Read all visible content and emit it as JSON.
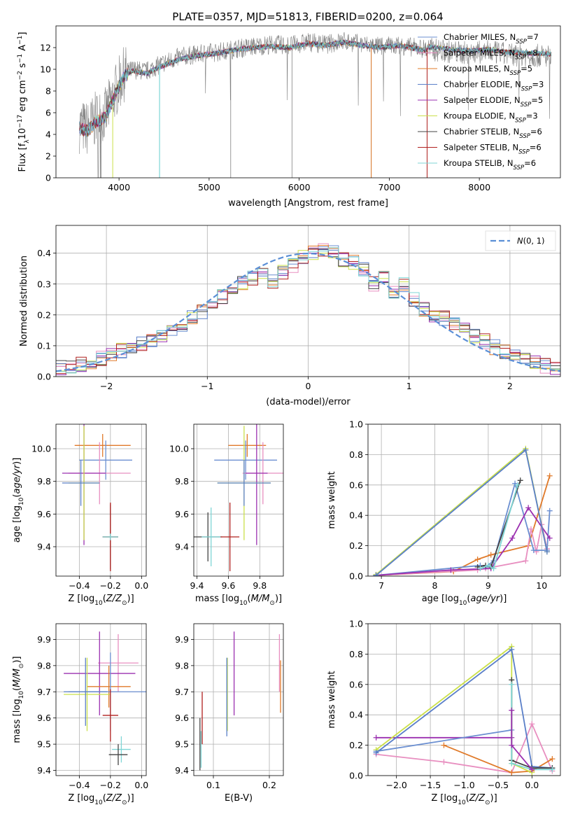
{
  "title": "PLATE=0357, MJD=51813, FIBERID=0200, z=0.064",
  "colors": {
    "chabrier_miles": "#6b8fd1",
    "salpeter_miles": "#e88fc0",
    "kroupa_miles": "#e07a2a",
    "chabrier_elodie": "#5a7fc8",
    "salpeter_elodie": "#9b30b0",
    "kroupa_elodie": "#cbe04a",
    "chabrier_stelib": "#444444",
    "salpeter_stelib": "#b0201e",
    "kroupa_stelib": "#7fd6d6",
    "data": "#808080",
    "gaussian": "#5b8fd6",
    "grid": "#b0b0b0"
  },
  "chart_data": [
    {
      "id": "spectrum",
      "type": "line",
      "title": "PLATE=0357, MJD=51813, FIBERID=0200, z=0.064",
      "xlabel": "wavelength [Angstrom, rest frame]",
      "ylabel": "Flux [f_λ 10^-17 erg cm^-2 s^-1 A^-1]",
      "xlim": [
        3300,
        8900
      ],
      "ylim": [
        0,
        14
      ],
      "xticks": [
        4000,
        5000,
        6000,
        7000,
        8000
      ],
      "yticks": [
        0,
        2,
        4,
        6,
        8,
        10,
        12
      ],
      "grid": false,
      "legend_position": "right",
      "legend": [
        {
          "base": "Chabrier MILES, N",
          "sub": "SSP",
          "tail": "=7",
          "key": "chabrier_miles"
        },
        {
          "base": "Salpeter MILES, N",
          "sub": "SSP",
          "tail": "=8",
          "key": "salpeter_miles"
        },
        {
          "base": "Kroupa MILES, N",
          "sub": "SSP",
          "tail": "=5",
          "key": "kroupa_miles"
        },
        {
          "base": "Chabrier ELODIE, N",
          "sub": "SSP",
          "tail": "=3",
          "key": "chabrier_elodie"
        },
        {
          "base": "Salpeter ELODIE, N",
          "sub": "SSP",
          "tail": "=5",
          "key": "salpeter_elodie"
        },
        {
          "base": "Kroupa ELODIE, N",
          "sub": "SSP",
          "tail": "=3",
          "key": "kroupa_elodie"
        },
        {
          "base": "Chabrier STELIB, N",
          "sub": "SSP",
          "tail": "=6",
          "key": "chabrier_stelib"
        },
        {
          "base": "Salpeter STELIB, N",
          "sub": "SSP",
          "tail": "=6",
          "key": "salpeter_stelib"
        },
        {
          "base": "Kroupa STELIB, N",
          "sub": "SSP",
          "tail": "=6",
          "key": "kroupa_stelib"
        }
      ],
      "data_continuum": {
        "x": [
          3560,
          3650,
          3750,
          3850,
          3950,
          4050,
          4150,
          4300,
          4500,
          4700,
          4900,
          5100,
          5300,
          5500,
          5700,
          5900,
          6100,
          6300,
          6500,
          6700,
          6900,
          7100,
          7300,
          7500,
          7700,
          7900,
          8100,
          8300,
          8500,
          8800
        ],
        "y": [
          4.8,
          4.5,
          5.5,
          5.8,
          7.8,
          9.5,
          10.0,
          9.8,
          10.6,
          11.2,
          11.4,
          11.6,
          11.9,
          12.1,
          12.3,
          12.2,
          12.5,
          12.3,
          12.6,
          12.3,
          12.1,
          12.2,
          12.0,
          11.8,
          11.6,
          11.5,
          11.6,
          11.4,
          11.3,
          11.2
        ]
      },
      "model_continuum": {
        "x": [
          3560,
          3650,
          3750,
          3850,
          3950,
          4050,
          4150,
          4300,
          4500,
          4700,
          4900,
          5100,
          5300,
          5500,
          5700,
          5900,
          6100,
          6300,
          6500,
          6700,
          6900,
          7100,
          7300,
          7420
        ],
        "y": [
          4.6,
          4.3,
          5.2,
          5.6,
          7.5,
          9.3,
          9.9,
          9.6,
          10.4,
          11.0,
          11.3,
          11.5,
          11.8,
          12.0,
          12.1,
          12.0,
          12.4,
          12.2,
          12.5,
          12.2,
          12.0,
          12.2,
          11.9,
          11.7
        ]
      }
    },
    {
      "id": "residuals",
      "type": "step",
      "xlabel": "(data-model)/error",
      "ylabel": "Normed distribution",
      "xlim": [
        -2.5,
        2.5
      ],
      "ylim": [
        0,
        0.49
      ],
      "xticks": [
        -2,
        -1,
        0,
        1,
        2
      ],
      "xtick_labels": [
        "−2",
        "−1",
        "0",
        "1",
        "2"
      ],
      "yticks": [
        0.0,
        0.1,
        0.2,
        0.3,
        0.4
      ],
      "ytick_labels": [
        "0.0",
        "0.1",
        "0.2",
        "0.3",
        "0.4"
      ],
      "grid": true,
      "legend_position": "top-right",
      "gaussian_label": "N(0,1)",
      "bin_edges": [
        -2.5,
        -2.4,
        -2.3,
        -2.2,
        -2.1,
        -2.0,
        -1.9,
        -1.8,
        -1.7,
        -1.6,
        -1.5,
        -1.4,
        -1.3,
        -1.2,
        -1.1,
        -1.0,
        -0.9,
        -0.8,
        -0.7,
        -0.6,
        -0.5,
        -0.4,
        -0.3,
        -0.2,
        -0.1,
        0.0,
        0.1,
        0.2,
        0.3,
        0.4,
        0.5,
        0.6,
        0.7,
        0.8,
        0.9,
        1.0,
        1.1,
        1.2,
        1.3,
        1.4,
        1.5,
        1.6,
        1.7,
        1.8,
        1.9,
        2.0,
        2.1,
        2.2,
        2.3,
        2.4,
        2.5
      ],
      "hist_base": [
        0.03,
        0.035,
        0.04,
        0.05,
        0.06,
        0.075,
        0.085,
        0.095,
        0.105,
        0.12,
        0.135,
        0.15,
        0.17,
        0.19,
        0.21,
        0.235,
        0.26,
        0.28,
        0.3,
        0.32,
        0.335,
        0.31,
        0.34,
        0.36,
        0.39,
        0.4,
        0.41,
        0.4,
        0.38,
        0.37,
        0.35,
        0.3,
        0.32,
        0.27,
        0.3,
        0.25,
        0.22,
        0.2,
        0.19,
        0.17,
        0.15,
        0.13,
        0.115,
        0.095,
        0.08,
        0.07,
        0.06,
        0.045,
        0.035,
        0.03
      ]
    },
    {
      "id": "z_vs_age",
      "type": "errorbar",
      "xlabel": "Z [log10(Z/Z⊙)]",
      "ylabel": "age [log10(age/yr)]",
      "xlim": [
        -0.55,
        0.03
      ],
      "ylim": [
        9.22,
        10.15
      ],
      "xticks": [
        -0.4,
        -0.2,
        0.0
      ],
      "xtick_labels": [
        "−0.4",
        "−0.2",
        "0.0"
      ],
      "yticks": [
        9.4,
        9.6,
        9.8,
        10.0
      ],
      "ytick_labels": [
        "9.4",
        "9.6",
        "9.8",
        "10.0"
      ],
      "grid": true,
      "points": [
        {
          "key": "kroupa_miles",
          "x": -0.25,
          "xerr": 0.18,
          "y": 10.02,
          "yerr": 0.07
        },
        {
          "key": "chabrier_miles",
          "x": -0.23,
          "xerr": 0.17,
          "y": 9.93,
          "yerr": 0.12
        },
        {
          "key": "salpeter_miles",
          "x": -0.27,
          "xerr": 0.2,
          "y": 9.85,
          "yerr": 0.19
        },
        {
          "key": "salpeter_elodie",
          "x": -0.37,
          "xerr": 0.14,
          "y": 9.85,
          "yerr": 0.44
        },
        {
          "key": "kroupa_elodie",
          "x": -0.37,
          "xerr": 0.1,
          "y": 9.79,
          "yerr": 0.35
        },
        {
          "key": "chabrier_elodie",
          "x": -0.39,
          "xerr": 0.12,
          "y": 9.79,
          "yerr": 0.14
        },
        {
          "key": "chabrier_stelib",
          "x": -0.2,
          "xerr": 0.05,
          "y": 9.46,
          "yerr": 0.2
        },
        {
          "key": "salpeter_stelib",
          "x": -0.2,
          "xerr": 0.05,
          "y": 9.46,
          "yerr": 0.21
        },
        {
          "key": "kroupa_stelib",
          "x": -0.2,
          "xerr": 0.05,
          "y": 9.46,
          "yerr": 0.02
        }
      ]
    },
    {
      "id": "mass_vs_age",
      "type": "errorbar",
      "xlabel": "mass [log10(M/M⊙)]",
      "ylabel": "",
      "xlim": [
        9.38,
        9.95
      ],
      "ylim": [
        9.22,
        10.15
      ],
      "xticks": [
        9.4,
        9.6,
        9.8
      ],
      "xtick_labels": [
        "9.4",
        "9.6",
        "9.8"
      ],
      "yticks": [
        9.4,
        9.6,
        9.8,
        10.0
      ],
      "ytick_labels": [
        "9.4",
        "9.6",
        "9.8",
        "10.0"
      ],
      "grid": true,
      "points": [
        {
          "key": "kroupa_miles",
          "x": 9.72,
          "xerr": 0.12,
          "y": 10.02,
          "yerr": 0.07
        },
        {
          "key": "chabrier_miles",
          "x": 9.71,
          "xerr": 0.2,
          "y": 9.93,
          "yerr": 0.12
        },
        {
          "key": "salpeter_miles",
          "x": 9.82,
          "xerr": 0.13,
          "y": 9.85,
          "yerr": 0.19
        },
        {
          "key": "salpeter_elodie",
          "x": 9.78,
          "xerr": 0.07,
          "y": 9.85,
          "yerr": 0.44
        },
        {
          "key": "kroupa_elodie",
          "x": 9.7,
          "xerr": 0.17,
          "y": 9.79,
          "yerr": 0.35
        },
        {
          "key": "chabrier_elodie",
          "x": 9.7,
          "xerr": 0.17,
          "y": 9.79,
          "yerr": 0.14
        },
        {
          "key": "chabrier_stelib",
          "x": 9.47,
          "xerr": 0.09,
          "y": 9.46,
          "yerr": 0.15
        },
        {
          "key": "salpeter_stelib",
          "x": 9.61,
          "xerr": 0.06,
          "y": 9.46,
          "yerr": 0.21
        },
        {
          "key": "kroupa_stelib",
          "x": 9.49,
          "xerr": 0.06,
          "y": 9.46,
          "yerr": 0.18
        }
      ]
    },
    {
      "id": "age_weights",
      "type": "line",
      "xlabel": "age [log10(age/yr)]",
      "ylabel": "mass weight",
      "xlim": [
        6.75,
        10.35
      ],
      "ylim": [
        0,
        1
      ],
      "xticks": [
        7,
        8,
        9,
        10
      ],
      "xtick_labels": [
        "7",
        "8",
        "9",
        "10"
      ],
      "yticks": [
        0.0,
        0.2,
        0.4,
        0.6,
        0.8,
        1.0
      ],
      "ytick_labels": [
        "0.0",
        "0.2",
        "0.4",
        "0.6",
        "0.8",
        "1.0"
      ],
      "grid": true,
      "series": [
        {
          "key": "kroupa_miles",
          "x": [
            6.9,
            8.35,
            8.8,
            9.05,
            9.75,
            10.15
          ],
          "y": [
            0.005,
            0.03,
            0.11,
            0.14,
            0.2,
            0.66
          ]
        },
        {
          "key": "salpeter_miles",
          "x": [
            6.9,
            8.8,
            8.95,
            9.7,
            9.8,
            9.9,
            10.0,
            10.1
          ],
          "y": [
            0.005,
            0.04,
            0.05,
            0.1,
            0.31,
            0.16,
            0.34,
            0.18
          ]
        },
        {
          "key": "chabrier_miles",
          "x": [
            6.9,
            8.85,
            8.95,
            9.1,
            9.5,
            9.85,
            10.1,
            10.15
          ],
          "y": [
            0.005,
            0.07,
            0.06,
            0.1,
            0.61,
            0.17,
            0.17,
            0.43
          ]
        },
        {
          "key": "salpeter_elodie",
          "x": [
            6.9,
            8.3,
            9.05,
            9.45,
            9.75,
            10.15
          ],
          "y": [
            0.005,
            0.04,
            0.05,
            0.25,
            0.45,
            0.25
          ]
        },
        {
          "key": "kroupa_elodie",
          "x": [
            6.9,
            9.7,
            10.1
          ],
          "y": [
            0.01,
            0.84,
            0.16
          ]
        },
        {
          "key": "chabrier_elodie",
          "x": [
            6.9,
            9.7,
            10.1
          ],
          "y": [
            0.005,
            0.83,
            0.16
          ]
        },
        {
          "key": "chabrier_stelib",
          "x": [
            8.8,
            8.95,
            9.05,
            9.6
          ],
          "y": [
            0.06,
            0.07,
            0.06,
            0.63
          ]
        },
        {
          "key": "kroupa_stelib",
          "x": [
            8.85,
            9.0,
            9.1,
            9.55
          ],
          "y": [
            0.05,
            0.07,
            0.05,
            0.6
          ]
        }
      ]
    },
    {
      "id": "mass_vs_z",
      "type": "errorbar",
      "xlabel": "Z [log10(Z/Z⊙)]",
      "ylabel": "mass [log10(M/M⊙)]",
      "xlim": [
        -0.55,
        0.03
      ],
      "ylim": [
        9.38,
        9.96
      ],
      "xticks": [
        -0.4,
        -0.2,
        0.0
      ],
      "xtick_labels": [
        "−0.4",
        "−0.2",
        "0.0"
      ],
      "yticks": [
        9.4,
        9.5,
        9.6,
        9.7,
        9.8,
        9.9
      ],
      "ytick_labels": [
        "9.4",
        "9.5",
        "9.6",
        "9.7",
        "9.8",
        "9.9"
      ],
      "grid": true,
      "points": [
        {
          "key": "salpeter_miles",
          "x": -0.15,
          "xerr": 0.13,
          "y": 9.81,
          "yerr": 0.11
        },
        {
          "key": "salpeter_elodie",
          "x": -0.27,
          "xerr": 0.23,
          "y": 9.77,
          "yerr": 0.16
        },
        {
          "key": "kroupa_miles",
          "x": -0.21,
          "xerr": 0.14,
          "y": 9.72,
          "yerr": 0.08
        },
        {
          "key": "chabrier_miles",
          "x": -0.2,
          "xerr": 0.27,
          "y": 9.7,
          "yerr": 0.15
        },
        {
          "key": "kroupa_elodie",
          "x": -0.35,
          "xerr": 0.15,
          "y": 9.69,
          "yerr": 0.14
        },
        {
          "key": "chabrier_elodie",
          "x": -0.36,
          "xerr": 0.14,
          "y": 9.7,
          "yerr": 0.13
        },
        {
          "key": "salpeter_stelib",
          "x": -0.2,
          "xerr": 0.05,
          "y": 9.61,
          "yerr": 0.1
        },
        {
          "key": "kroupa_stelib",
          "x": -0.13,
          "xerr": 0.06,
          "y": 9.48,
          "yerr": 0.05
        },
        {
          "key": "chabrier_stelib",
          "x": -0.15,
          "xerr": 0.06,
          "y": 9.46,
          "yerr": 0.04
        }
      ]
    },
    {
      "id": "ebv_vs_mass",
      "type": "errorbar",
      "xlabel": "E(B-V)",
      "ylabel": "",
      "xlim": [
        0.065,
        0.225
      ],
      "ylim": [
        9.38,
        9.96
      ],
      "xticks": [
        0.1,
        0.2
      ],
      "xtick_labels": [
        "0.1",
        "0.2"
      ],
      "yticks": [
        9.4,
        9.5,
        9.6,
        9.7,
        9.8,
        9.9
      ],
      "ytick_labels": [
        "9.4",
        "9.5",
        "9.6",
        "9.7",
        "9.8",
        "9.9"
      ],
      "grid": true,
      "points": [
        {
          "key": "salpeter_miles",
          "x": 0.218,
          "xerr": 0,
          "y": 9.81,
          "yerr": 0.11
        },
        {
          "key": "kroupa_miles",
          "x": 0.22,
          "xerr": 0,
          "y": 9.72,
          "yerr": 0.1
        },
        {
          "key": "salpeter_elodie",
          "x": 0.137,
          "xerr": 0,
          "y": 9.77,
          "yerr": 0.16
        },
        {
          "key": "kroupa_elodie",
          "x": 0.125,
          "xerr": 0,
          "y": 9.69,
          "yerr": 0.14
        },
        {
          "key": "chabrier_elodie",
          "x": 0.124,
          "xerr": 0,
          "y": 9.68,
          "yerr": 0.15
        },
        {
          "key": "salpeter_stelib",
          "x": 0.08,
          "xerr": 0,
          "y": 9.6,
          "yerr": 0.1
        },
        {
          "key": "kroupa_stelib",
          "x": 0.078,
          "xerr": 0,
          "y": 9.48,
          "yerr": 0.07
        },
        {
          "key": "chabrier_stelib",
          "x": 0.076,
          "xerr": 0,
          "y": 9.5,
          "yerr": 0.1
        }
      ]
    },
    {
      "id": "z_weights",
      "type": "line",
      "xlabel": "Z [log10(Z/Z⊙)]",
      "ylabel": "mass weight",
      "xlim": [
        -2.42,
        0.42
      ],
      "ylim": [
        0,
        1
      ],
      "xticks": [
        -2.0,
        -1.5,
        -1.0,
        -0.5,
        0.0
      ],
      "xtick_labels": [
        "−2.0",
        "−1.5",
        "−1.0",
        "−0.5",
        "0.0"
      ],
      "yticks": [
        0.0,
        0.2,
        0.4,
        0.6,
        0.8,
        1.0
      ],
      "ytick_labels": [
        "0.0",
        "0.2",
        "0.4",
        "0.6",
        "0.8",
        "1.0"
      ],
      "grid": true,
      "series": [
        {
          "key": "salpeter_elodie",
          "x": [
            -2.3,
            -0.3
          ],
          "y": [
            0.25,
            0.25
          ]
        },
        {
          "key": "chabrier_miles",
          "x": [
            -2.3,
            -0.3
          ],
          "y": [
            0.16,
            0.3
          ]
        },
        {
          "key": "salpeter_miles",
          "x": [
            -2.3,
            -1.3,
            -0.3,
            0.0,
            0.3
          ],
          "y": [
            0.14,
            0.09,
            0.02,
            0.34,
            0.03
          ]
        },
        {
          "key": "kroupa_miles",
          "x": [
            -1.3,
            -0.3,
            0.0,
            0.3
          ],
          "y": [
            0.2,
            0.02,
            0.03,
            0.11
          ]
        },
        {
          "key": "kroupa_elodie",
          "x": [
            -2.3,
            -0.3,
            -0.3,
            0.0
          ],
          "y": [
            0.17,
            0.85,
            0.08,
            0.02
          ]
        },
        {
          "key": "chabrier_elodie",
          "x": [
            -2.3,
            -0.3,
            0.0,
            0.3
          ],
          "y": [
            0.15,
            0.83,
            0.06,
            0.05
          ]
        },
        {
          "key": "chabrier_stelib",
          "x": [
            -0.3,
            -0.3,
            0.0,
            0.3
          ],
          "y": [
            0.63,
            0.1,
            0.05,
            0.05
          ]
        },
        {
          "key": "kroupa_stelib",
          "x": [
            -0.3,
            -0.3,
            0.0,
            0.3
          ],
          "y": [
            0.6,
            0.08,
            0.04,
            0.04
          ]
        },
        {
          "key": "salpeter_elodie",
          "x": [
            -0.3,
            -0.3,
            0.0
          ],
          "y": [
            0.43,
            0.2,
            0.04
          ]
        }
      ]
    }
  ]
}
